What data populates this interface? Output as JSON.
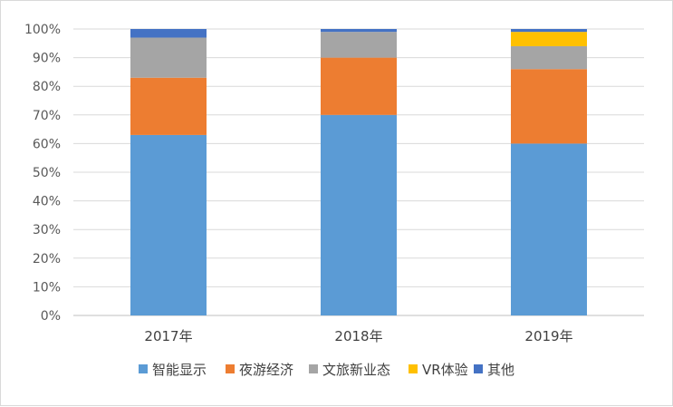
{
  "chart_data": {
    "type": "bar",
    "stacked": true,
    "percent": true,
    "categories": [
      "2017年",
      "2018年",
      "2019年"
    ],
    "series": [
      {
        "name": "智能显示",
        "color": "#5b9bd5",
        "values": [
          63,
          70,
          60
        ]
      },
      {
        "name": "夜游经济",
        "color": "#ed7d31",
        "values": [
          20,
          20,
          26
        ]
      },
      {
        "name": "文旅新业态",
        "color": "#a5a5a5",
        "values": [
          14,
          9,
          8
        ]
      },
      {
        "name": "VR体验",
        "color": "#ffc000",
        "values": [
          0,
          0,
          5
        ]
      },
      {
        "name": "其他",
        "color": "#4472c4",
        "values": [
          3,
          1,
          1
        ]
      }
    ],
    "ylim": [
      0,
      100
    ],
    "yticks": [
      "0%",
      "10%",
      "20%",
      "30%",
      "40%",
      "50%",
      "60%",
      "70%",
      "80%",
      "90%",
      "100%"
    ],
    "grid": true,
    "legend_position": "bottom"
  }
}
